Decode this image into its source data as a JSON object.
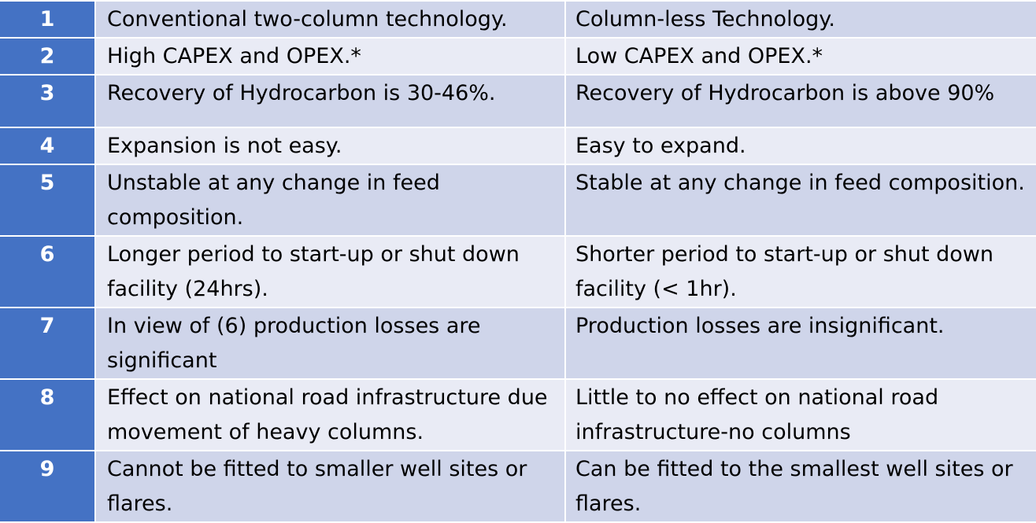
{
  "table": {
    "rows": [
      {
        "num": "1",
        "conventional": "Conventional two-column technology.",
        "columnless": "Column-less Technology."
      },
      {
        "num": "2",
        "conventional": "High CAPEX and OPEX.*",
        "columnless": "Low CAPEX and OPEX.*"
      },
      {
        "num": "3",
        "conventional": "Recovery of Hydrocarbon is 30-46%.",
        "columnless": "Recovery of Hydrocarbon is above 90%"
      },
      {
        "num": "4",
        "conventional": "Expansion is not easy.",
        "columnless": "Easy to expand."
      },
      {
        "num": "5",
        "conventional": "Unstable at any change in feed composition.",
        "columnless": "Stable at any change in feed composition."
      },
      {
        "num": "6",
        "conventional": "Longer period to start-up or shut down facility (24hrs).",
        "columnless": "Shorter period to start-up or shut down facility (< 1hr)."
      },
      {
        "num": "7",
        "conventional": "In view of (6) production losses are significant",
        "columnless": "Production losses are insignificant."
      },
      {
        "num": "8",
        "conventional": "Effect on national road infrastructure due movement of heavy columns.",
        "columnless": "Little to no effect on national road infrastructure-no columns"
      },
      {
        "num": "9",
        "conventional": "Cannot be fitted to smaller well sites or flares.",
        "columnless": "Can be fitted to the smallest well sites or flares."
      }
    ]
  },
  "colors": {
    "number_column": "#4472c4",
    "row_dark": "#cfd5ea",
    "row_light": "#e9ebf5"
  }
}
